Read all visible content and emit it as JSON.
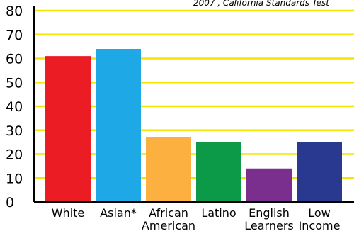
{
  "chart_data": {
    "type": "bar",
    "title": "",
    "note": "2007 , California Standards Test",
    "xlabel": "",
    "ylabel": "",
    "ylim": [
      0,
      80
    ],
    "yticks": [
      0,
      10,
      20,
      30,
      40,
      50,
      60,
      70,
      80
    ],
    "grid": true,
    "categories": [
      [
        "White"
      ],
      [
        "Asian*"
      ],
      [
        "African",
        "American"
      ],
      [
        "Latino"
      ],
      [
        "English",
        "Learners"
      ],
      [
        "Low",
        "Income"
      ]
    ],
    "values": [
      61,
      64,
      27,
      25,
      14,
      25
    ],
    "colors": [
      "#ec1c24",
      "#1ea8e6",
      "#fbb040",
      "#0c9a48",
      "#7a2f8f",
      "#2a3990"
    ],
    "grid_color": "#f5e400",
    "axis_color": "#000000"
  }
}
